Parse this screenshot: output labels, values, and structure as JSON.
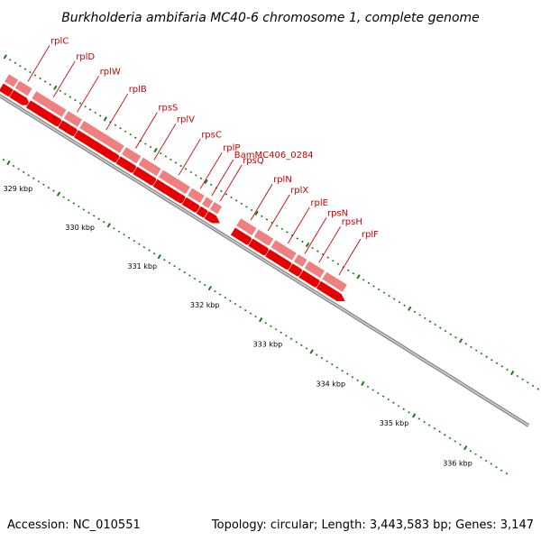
{
  "title": "Burkholderia ambifaria MC40-6 chromosome 1, complete genome",
  "footer": {
    "accession": "Accession: NC_010551",
    "topology": "Topology: circular; Length: 3,443,583 bp; Genes: 3,147"
  },
  "colors": {
    "cds_strand": "#e60000",
    "gene_strand": "#f08080",
    "backbone": "#8c8c8c",
    "ticks": "#1a7a1a",
    "label": "#cc0000"
  },
  "genes": [
    {
      "name": "rplC",
      "start": 0.02,
      "end": 0.045
    },
    {
      "name": "rplD",
      "start": 0.052,
      "end": 0.11
    },
    {
      "name": "rplW",
      "start": 0.113,
      "end": 0.14
    },
    {
      "name": "rplB",
      "start": 0.143,
      "end": 0.22
    },
    {
      "name": "rpsS",
      "start": 0.223,
      "end": 0.252
    },
    {
      "name": "rplV",
      "start": 0.255,
      "end": 0.29
    },
    {
      "name": "rpsC",
      "start": 0.293,
      "end": 0.345
    },
    {
      "name": "rplP",
      "start": 0.348,
      "end": 0.372
    },
    {
      "name": "BamMC406_0284",
      "start": 0.375,
      "end": 0.388
    },
    {
      "name": "rpsQ",
      "start": 0.39,
      "end": 0.405
    },
    {
      "name": "rplN",
      "start": 0.44,
      "end": 0.47
    },
    {
      "name": "rplX",
      "start": 0.473,
      "end": 0.502
    },
    {
      "name": "rplE",
      "start": 0.505,
      "end": 0.545
    },
    {
      "name": "rpsN",
      "start": 0.548,
      "end": 0.565
    },
    {
      "name": "rpsH",
      "start": 0.568,
      "end": 0.598
    },
    {
      "name": "rplF",
      "start": 0.601,
      "end": 0.64
    }
  ],
  "kbp_labels": [
    "329 kbp",
    "330 kbp",
    "331 kbp",
    "332 kbp",
    "333 kbp",
    "334 kbp",
    "335 kbp",
    "336 kbp"
  ]
}
